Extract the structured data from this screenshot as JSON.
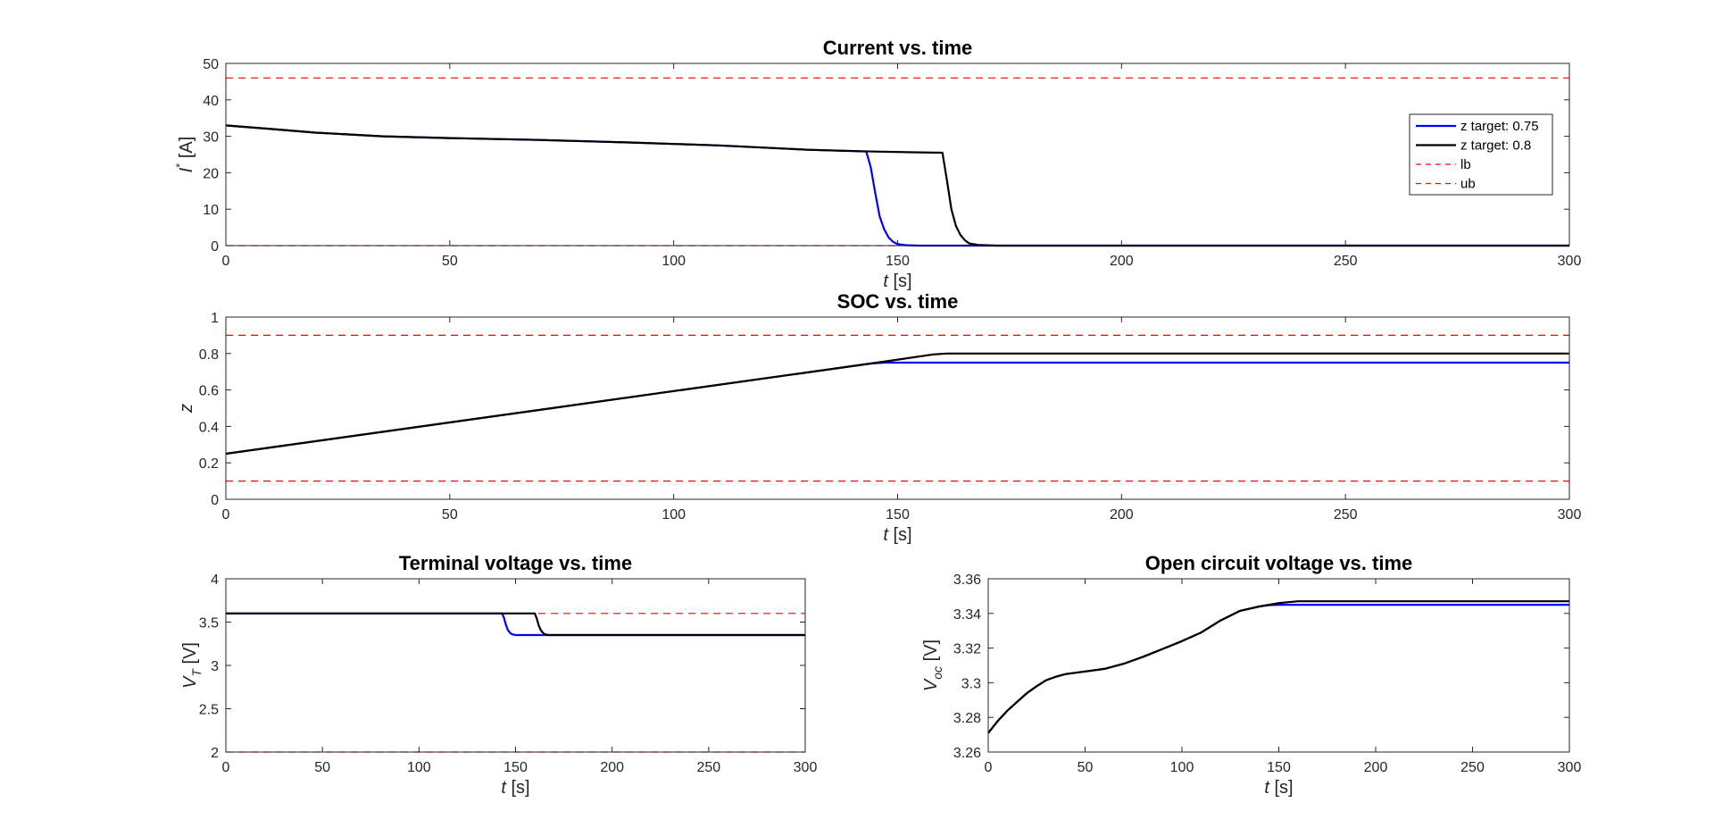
{
  "colors": {
    "blue": "#0000ff",
    "black": "#000000",
    "bound": "#ff0000",
    "axis": "#262626",
    "background": "#ffffff"
  },
  "chart_data": [
    {
      "id": "current",
      "type": "line",
      "title": "Current vs. time",
      "xlabel": {
        "italic": "t",
        "rest": " [s]"
      },
      "ylabel": {
        "main": "I",
        "sup": "*",
        "rest": " [A]"
      },
      "xlim": [
        0,
        300
      ],
      "ylim": [
        0,
        50
      ],
      "xticks": [
        0,
        50,
        100,
        150,
        200,
        250,
        300
      ],
      "yticks": [
        0,
        10,
        20,
        30,
        40,
        50
      ],
      "xticklabels": [
        "0",
        "50",
        "100",
        "150",
        "200",
        "250",
        "300"
      ],
      "yticklabels": [
        "0",
        "10",
        "20",
        "30",
        "40",
        "50"
      ],
      "grid": false,
      "legend_position": "top-right",
      "bounds": [
        {
          "name": "lb",
          "y": 0
        },
        {
          "name": "ub",
          "y": 46
        }
      ],
      "series": [
        {
          "name": "z target: 0.75",
          "color": "blue",
          "x": [
            0,
            10,
            20,
            35,
            50,
            70,
            90,
            110,
            130,
            143,
            144,
            145,
            146,
            147,
            148,
            149,
            150,
            152,
            155,
            300
          ],
          "y": [
            33,
            32,
            31,
            30,
            29.5,
            29,
            28.3,
            27.5,
            26.3,
            25.8,
            21.5,
            14.5,
            8,
            4.5,
            2.2,
            1.0,
            0.4,
            0.1,
            0,
            0
          ]
        },
        {
          "name": "z target: 0.8",
          "color": "black",
          "x": [
            0,
            10,
            20,
            35,
            50,
            70,
            90,
            110,
            130,
            145,
            155,
            160,
            161,
            162,
            163,
            164,
            165,
            166,
            168,
            172,
            300
          ],
          "y": [
            33,
            32,
            31,
            30,
            29.5,
            29,
            28.3,
            27.5,
            26.3,
            25.8,
            25.6,
            25.5,
            18,
            10,
            5.5,
            3,
            1.5,
            0.6,
            0.2,
            0,
            0
          ]
        }
      ]
    },
    {
      "id": "soc",
      "type": "line",
      "title": "SOC vs. time",
      "xlabel": {
        "italic": "t",
        "rest": " [s]"
      },
      "ylabel": {
        "main": "z",
        "sup": "",
        "rest": ""
      },
      "xlim": [
        0,
        300
      ],
      "ylim": [
        0,
        1
      ],
      "xticks": [
        0,
        50,
        100,
        150,
        200,
        250,
        300
      ],
      "yticks": [
        0,
        0.2,
        0.4,
        0.6,
        0.8,
        1
      ],
      "xticklabels": [
        "0",
        "50",
        "100",
        "150",
        "200",
        "250",
        "300"
      ],
      "yticklabels": [
        "0",
        "0.2",
        "0.4",
        "0.6",
        "0.8",
        "1"
      ],
      "grid": false,
      "bounds": [
        {
          "name": "lb",
          "y": 0.1
        },
        {
          "name": "ub",
          "y": 0.9
        }
      ],
      "series": [
        {
          "name": "z target: 0.75",
          "color": "blue",
          "x": [
            0,
            144,
            147,
            300
          ],
          "y": [
            0.25,
            0.745,
            0.75,
            0.75
          ]
        },
        {
          "name": "z target: 0.8",
          "color": "black",
          "x": [
            0,
            144,
            158,
            161,
            300
          ],
          "y": [
            0.25,
            0.745,
            0.795,
            0.8,
            0.8
          ]
        }
      ]
    },
    {
      "id": "vt",
      "type": "line",
      "title": "Terminal voltage vs. time",
      "xlabel": {
        "italic": "t",
        "rest": " [s]"
      },
      "ylabel": {
        "main": "V",
        "sub": "T",
        "rest": " [V]"
      },
      "xlim": [
        0,
        300
      ],
      "ylim": [
        2,
        4
      ],
      "xticks": [
        0,
        50,
        100,
        150,
        200,
        250,
        300
      ],
      "yticks": [
        2,
        2.5,
        3,
        3.5,
        4
      ],
      "xticklabels": [
        "0",
        "50",
        "100",
        "150",
        "200",
        "250",
        "300"
      ],
      "yticklabels": [
        "2",
        "2.5",
        "3",
        "3.5",
        "4"
      ],
      "grid": false,
      "bounds": [
        {
          "name": "lb",
          "y": 2.0
        },
        {
          "name": "ub",
          "y": 3.6
        }
      ],
      "series": [
        {
          "name": "z target: 0.75",
          "color": "blue",
          "x": [
            0,
            143,
            144,
            145,
            146,
            147,
            148,
            150,
            153,
            300
          ],
          "y": [
            3.6,
            3.6,
            3.55,
            3.47,
            3.41,
            3.38,
            3.36,
            3.35,
            3.35,
            3.35
          ]
        },
        {
          "name": "z target: 0.8",
          "color": "black",
          "x": [
            0,
            160,
            161,
            162,
            163,
            164,
            165,
            167,
            170,
            300
          ],
          "y": [
            3.6,
            3.6,
            3.54,
            3.46,
            3.41,
            3.38,
            3.36,
            3.35,
            3.35,
            3.35
          ]
        }
      ]
    },
    {
      "id": "voc",
      "type": "line",
      "title": "Open circuit voltage vs. time",
      "xlabel": {
        "italic": "t",
        "rest": " [s]"
      },
      "ylabel": {
        "main": "V",
        "sub": "oc",
        "rest": " [V]"
      },
      "xlim": [
        0,
        300
      ],
      "ylim": [
        3.26,
        3.36
      ],
      "xticks": [
        0,
        50,
        100,
        150,
        200,
        250,
        300
      ],
      "yticks": [
        3.26,
        3.28,
        3.3,
        3.32,
        3.34,
        3.36
      ],
      "xticklabels": [
        "0",
        "50",
        "100",
        "150",
        "200",
        "250",
        "300"
      ],
      "yticklabels": [
        "3.26",
        "3.28",
        "3.3",
        "3.32",
        "3.34",
        "3.36"
      ],
      "grid": false,
      "bounds": [],
      "series": [
        {
          "name": "z target: 0.75",
          "color": "blue",
          "x": [
            0,
            5,
            10,
            15,
            20,
            25,
            30,
            35,
            40,
            50,
            60,
            70,
            80,
            90,
            100,
            110,
            120,
            130,
            140,
            145,
            150,
            300
          ],
          "y": [
            3.271,
            3.278,
            3.284,
            3.289,
            3.294,
            3.298,
            3.3015,
            3.3035,
            3.305,
            3.3065,
            3.308,
            3.311,
            3.315,
            3.3195,
            3.324,
            3.329,
            3.336,
            3.3415,
            3.344,
            3.3448,
            3.345,
            3.345
          ]
        },
        {
          "name": "z target: 0.8",
          "color": "black",
          "x": [
            0,
            5,
            10,
            15,
            20,
            25,
            30,
            35,
            40,
            50,
            60,
            70,
            80,
            90,
            100,
            110,
            120,
            130,
            140,
            145,
            150,
            155,
            160,
            300
          ],
          "y": [
            3.271,
            3.278,
            3.284,
            3.289,
            3.294,
            3.298,
            3.3015,
            3.3035,
            3.305,
            3.3065,
            3.308,
            3.311,
            3.315,
            3.3195,
            3.324,
            3.329,
            3.336,
            3.3415,
            3.344,
            3.345,
            3.346,
            3.3465,
            3.347,
            3.347
          ]
        }
      ]
    }
  ]
}
